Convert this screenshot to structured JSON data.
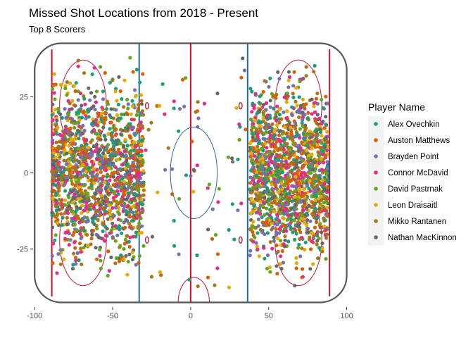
{
  "chart_data": {
    "type": "scatter",
    "title": "Missed Shot Locations from 2018 - Present",
    "subtitle": "Top 8 Scorers",
    "xlabel": "",
    "ylabel": "",
    "xlim": [
      -101,
      102
    ],
    "ylim": [
      -44,
      44
    ],
    "x_ticks": [
      -100,
      -50,
      0,
      50,
      100
    ],
    "y_ticks": [
      -25,
      0,
      25
    ],
    "x_tick_labels": [
      "-100",
      "-50",
      "0",
      "50",
      "100"
    ],
    "y_tick_labels": [
      "-25",
      "0",
      "25"
    ],
    "grid": false,
    "legend": {
      "title": "Player Name",
      "position": "right",
      "entries": [
        {
          "name": "Alex Ovechkin",
          "color": "#1b9e77"
        },
        {
          "name": "Auston Matthews",
          "color": "#d95f02"
        },
        {
          "name": "Brayden Point",
          "color": "#7570b3"
        },
        {
          "name": "Connor McDavid",
          "color": "#e7298a"
        },
        {
          "name": "David Pastrnak",
          "color": "#66a61e"
        },
        {
          "name": "Leon Draisaitl",
          "color": "#e6ab02"
        },
        {
          "name": "Mikko Rantanen",
          "color": "#a6761d"
        },
        {
          "name": "Nathan MacKinnon",
          "color": "#666666"
        }
      ]
    },
    "rink": {
      "boards_color": "#555555",
      "red_line_color": "#c8102e",
      "blue_line_color": "#1f6b99",
      "red_line_x": 0,
      "blue_line_x": [
        -33,
        36.5
      ],
      "goal_line_x": [
        -89,
        89
      ]
    },
    "point_clusters": [
      {
        "x_range": [
          -89,
          -30
        ],
        "y_range": [
          -40,
          40
        ],
        "count": 1500
      },
      {
        "x_range": [
          38,
          88
        ],
        "y_range": [
          -40,
          40
        ],
        "count": 1500
      }
    ],
    "sample_points": [
      {
        "player": "Alex Ovechkin",
        "x": -55,
        "y": 12
      },
      {
        "player": "Auston Matthews",
        "x": 62,
        "y": -8
      },
      {
        "player": "Brayden Point",
        "x": 0,
        "y": -1
      },
      {
        "player": "Connor McDavid",
        "x": 11,
        "y": -5
      },
      {
        "player": "David Pastrnak",
        "x": 70,
        "y": 30
      },
      {
        "player": "Leon Draisaitl",
        "x": -20,
        "y": 22
      },
      {
        "player": "Mikko Rantanen",
        "x": -70,
        "y": -30
      },
      {
        "player": "Nathan MacKinnon",
        "x": 2,
        "y": 1
      }
    ]
  }
}
